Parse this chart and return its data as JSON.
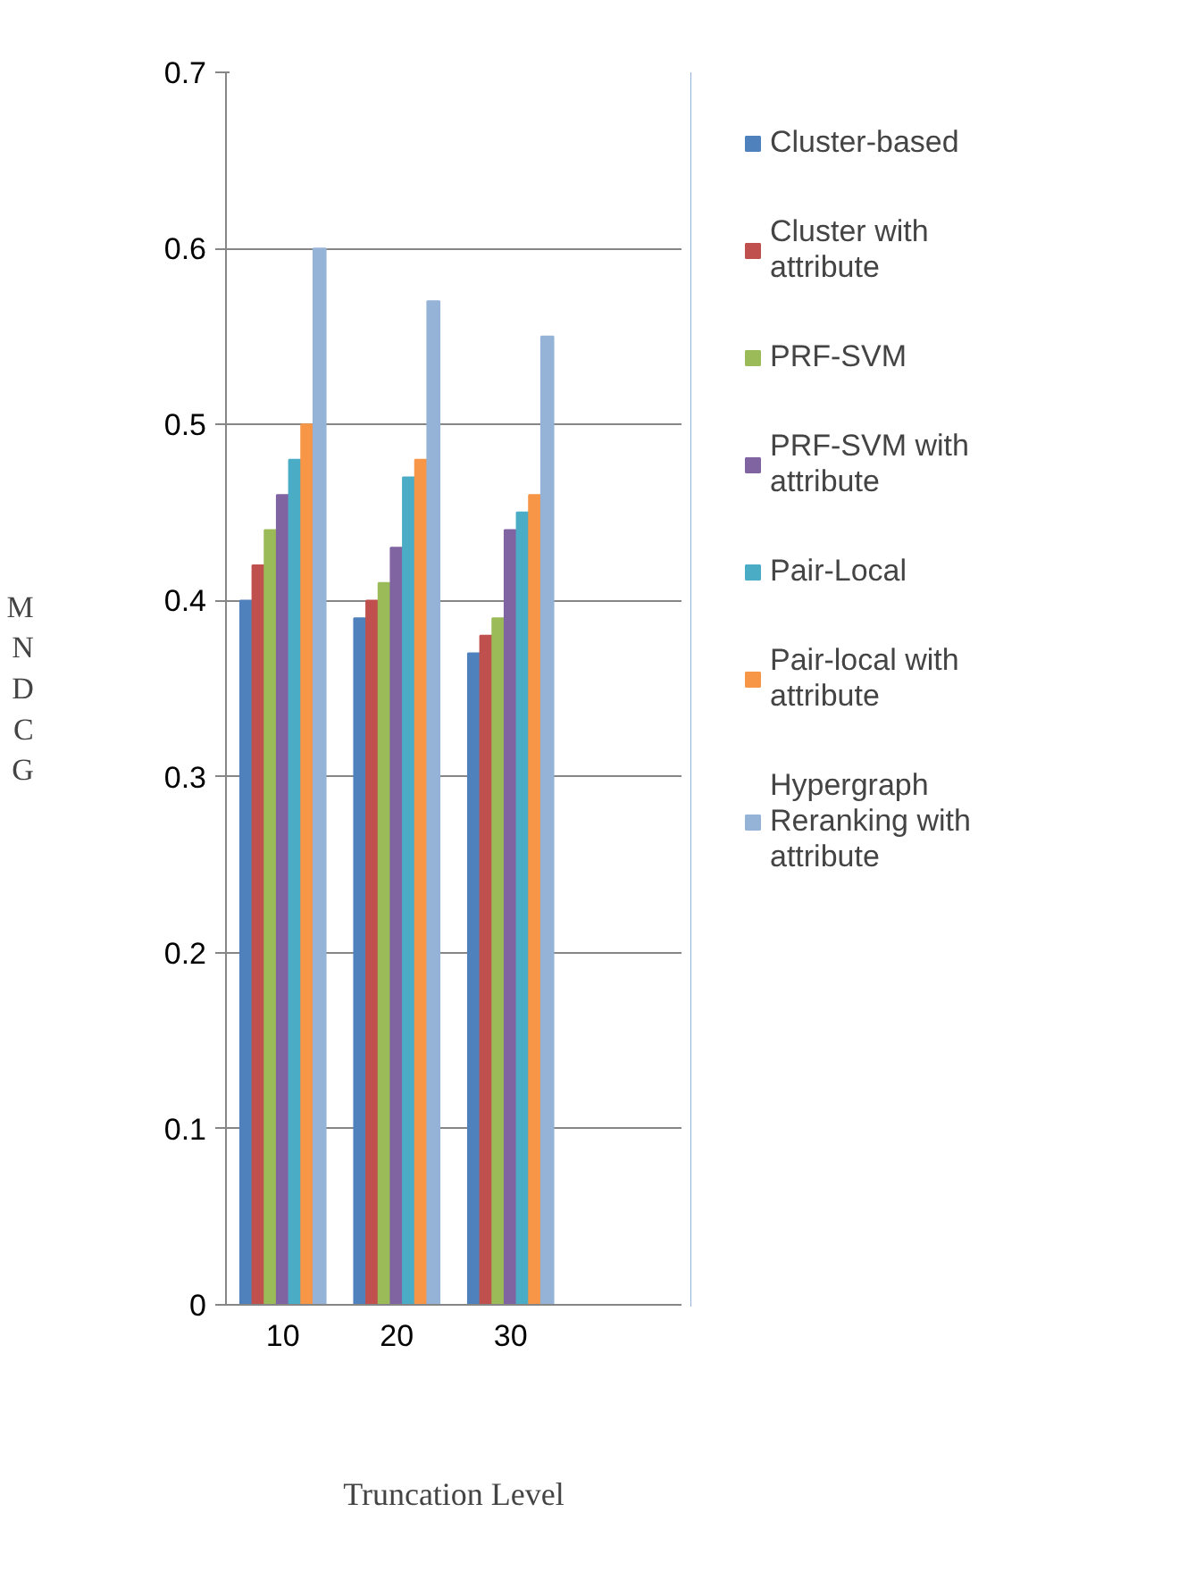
{
  "chart_data": {
    "type": "bar",
    "xlabel": "Truncation Level",
    "ylabel": "MNDCG",
    "categories": [
      "10",
      "20",
      "30",
      null
    ],
    "series": [
      {
        "name": "Cluster-based",
        "color": "#4f81bd",
        "values": [
          0.4,
          0.39,
          0.37,
          null
        ]
      },
      {
        "name": "Cluster with attribute",
        "color": "#c0504d",
        "values": [
          0.42,
          0.4,
          0.38,
          null
        ]
      },
      {
        "name": "PRF-SVM",
        "color": "#9bbb59",
        "values": [
          0.44,
          0.41,
          0.39,
          null
        ]
      },
      {
        "name": "PRF-SVM with attribute",
        "color": "#8064a2",
        "values": [
          0.46,
          0.43,
          0.44,
          null
        ]
      },
      {
        "name": "Pair-Local",
        "color": "#4bacc6",
        "values": [
          0.48,
          0.47,
          0.45,
          null
        ]
      },
      {
        "name": "Pair-local with attribute",
        "color": "#f79646",
        "values": [
          0.5,
          0.48,
          0.46,
          null
        ]
      },
      {
        "name": "Hypergraph Reranking with attribute",
        "color": "#95b3d7",
        "values": [
          0.6,
          0.57,
          0.55,
          null
        ]
      }
    ],
    "ylim": [
      0,
      0.7
    ],
    "yticks": [
      0,
      0.1,
      0.2,
      0.3,
      0.4,
      0.5,
      0.6,
      0.7
    ],
    "grid": "y",
    "legend": "right"
  }
}
